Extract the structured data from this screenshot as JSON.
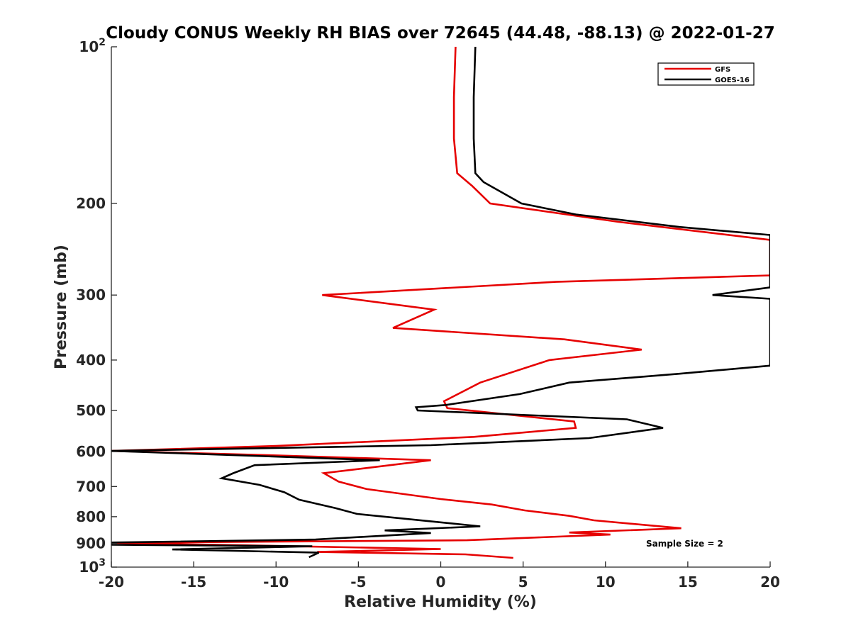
{
  "chart_data": {
    "type": "line",
    "title": "Cloudy CONUS Weekly RH BIAS over 72645 (44.48, -88.13) @ 2022-01-27",
    "xlabel": "Relative Humidity (%)",
    "ylabel": "Pressure (mb)",
    "xlim": [
      -20,
      20
    ],
    "ylim": [
      100,
      1000
    ],
    "yscale": "log",
    "y_reversed": true,
    "grid": false,
    "legend_position": "top-right",
    "x_ticks": [
      -20,
      -15,
      -10,
      -5,
      0,
      5,
      10,
      15,
      20
    ],
    "x_tick_labels": [
      "-20",
      "-15",
      "-10",
      "-5",
      "0",
      "5",
      "10",
      "15",
      "20"
    ],
    "y_ticks": [
      100,
      200,
      300,
      400,
      500,
      600,
      700,
      800,
      900,
      1000
    ],
    "y_tick_labels": [
      {
        "base": "10",
        "exp": "2"
      },
      {
        "base": "200",
        "exp": ""
      },
      {
        "base": "300",
        "exp": ""
      },
      {
        "base": "400",
        "exp": ""
      },
      {
        "base": "500",
        "exp": ""
      },
      {
        "base": "600",
        "exp": ""
      },
      {
        "base": "700",
        "exp": ""
      },
      {
        "base": "800",
        "exp": ""
      },
      {
        "base": "900",
        "exp": ""
      },
      {
        "base": "10",
        "exp": "3"
      }
    ],
    "annotation": "Sample Size = 2",
    "series": [
      {
        "name": "GFS",
        "color": "#e60000",
        "points": [
          [
            0.9,
            100
          ],
          [
            0.8,
            125
          ],
          [
            0.8,
            150
          ],
          [
            1.0,
            175
          ],
          [
            1.9,
            185
          ],
          [
            3.0,
            200
          ],
          [
            10.8,
            217
          ],
          [
            20,
            235
          ],
          [
            20,
            275
          ],
          [
            7.0,
            283
          ],
          [
            -7.2,
            300
          ],
          [
            -0.4,
            320
          ],
          [
            -2.9,
            347
          ],
          [
            7.5,
            365
          ],
          [
            12.2,
            382
          ],
          [
            6.6,
            400
          ],
          [
            2.4,
            442
          ],
          [
            0.2,
            480
          ],
          [
            0.4,
            495
          ],
          [
            8.1,
            525
          ],
          [
            8.2,
            540
          ],
          [
            2.0,
            562
          ],
          [
            -10.0,
            585
          ],
          [
            -20,
            598
          ],
          [
            -10.0,
            610
          ],
          [
            -0.6,
            623
          ],
          [
            -7.1,
            660
          ],
          [
            -6.2,
            685
          ],
          [
            -4.5,
            708
          ],
          [
            0.0,
            740
          ],
          [
            3.1,
            758
          ],
          [
            5.1,
            778
          ],
          [
            7.8,
            797
          ],
          [
            9.3,
            813
          ],
          [
            14.6,
            842
          ],
          [
            7.8,
            858
          ],
          [
            10.3,
            866
          ],
          [
            1.6,
            888
          ],
          [
            -20,
            898
          ],
          [
            0.0,
            923
          ],
          [
            -7.5,
            935
          ],
          [
            1.5,
            945
          ],
          [
            4.4,
            960
          ]
        ]
      },
      {
        "name": "GOES-16",
        "color": "#000000",
        "points": [
          [
            2.1,
            100
          ],
          [
            2.0,
            125
          ],
          [
            2.0,
            150
          ],
          [
            2.1,
            175
          ],
          [
            2.6,
            182
          ],
          [
            4.9,
            200
          ],
          [
            8.2,
            210
          ],
          [
            14.5,
            222
          ],
          [
            20,
            230
          ],
          [
            20,
            290
          ],
          [
            16.5,
            300
          ],
          [
            20,
            305
          ],
          [
            20,
            410
          ],
          [
            14.5,
            425
          ],
          [
            7.8,
            442
          ],
          [
            4.8,
            465
          ],
          [
            0.3,
            488
          ],
          [
            -1.5,
            493
          ],
          [
            -1.4,
            500
          ],
          [
            11.3,
            520
          ],
          [
            13.5,
            540
          ],
          [
            9.0,
            565
          ],
          [
            -0.6,
            583
          ],
          [
            -20,
            598
          ],
          [
            -3.7,
            623
          ],
          [
            -11.3,
            637
          ],
          [
            -12.6,
            660
          ],
          [
            -13.3,
            675
          ],
          [
            -11.0,
            695
          ],
          [
            -9.5,
            718
          ],
          [
            -8.6,
            742
          ],
          [
            -6.4,
            770
          ],
          [
            -5.1,
            790
          ],
          [
            2.4,
            835
          ],
          [
            -3.4,
            850
          ],
          [
            -0.6,
            860
          ],
          [
            -4.8,
            875
          ],
          [
            -7.6,
            885
          ],
          [
            -20,
            897
          ],
          [
            -20,
            906
          ],
          [
            -7.8,
            912
          ],
          [
            -16.3,
            925
          ],
          [
            -7.4,
            938
          ],
          [
            -8.0,
            957
          ]
        ]
      }
    ]
  }
}
